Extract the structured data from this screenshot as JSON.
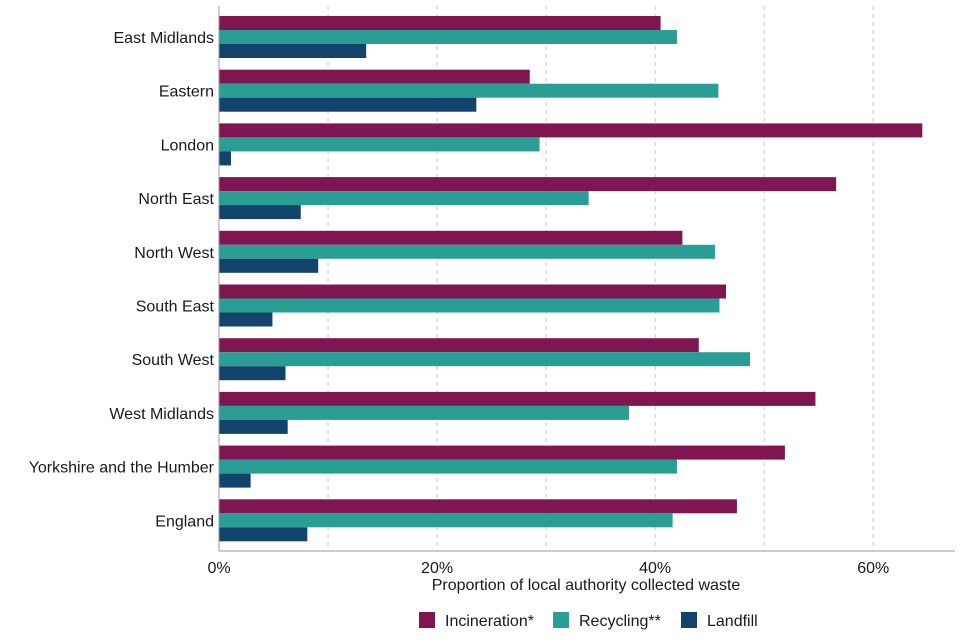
{
  "chart_data": {
    "type": "bar",
    "orientation": "horizontal",
    "title": "",
    "xlabel": "Proportion of local authority collected waste",
    "ylabel": "",
    "xlim": [
      0,
      67.5
    ],
    "xticks": [
      0,
      20,
      40,
      60
    ],
    "xtick_labels": [
      "0%",
      "20%",
      "40%",
      "60%"
    ],
    "grid": "vertical dashed at every 10%",
    "legend_position": "bottom",
    "categories": [
      "East Midlands",
      "Eastern",
      "London",
      "North East",
      "North West",
      "South East",
      "South West",
      "West Midlands",
      "Yorkshire and the Humber",
      "England"
    ],
    "series": [
      {
        "name": "Incineration*",
        "color": "#7f1650",
        "values": [
          40.5,
          28.5,
          64.5,
          56.6,
          42.5,
          46.5,
          44.0,
          54.7,
          51.9,
          47.5
        ]
      },
      {
        "name": "Recycling**",
        "color": "#2a9d94",
        "values": [
          42.0,
          45.8,
          29.4,
          33.9,
          45.5,
          45.9,
          48.7,
          37.6,
          42.0,
          41.6
        ]
      },
      {
        "name": "Landfill",
        "color": "#12436d",
        "values": [
          13.5,
          23.6,
          1.1,
          7.5,
          9.1,
          4.9,
          6.1,
          6.3,
          2.9,
          8.1
        ]
      }
    ]
  }
}
